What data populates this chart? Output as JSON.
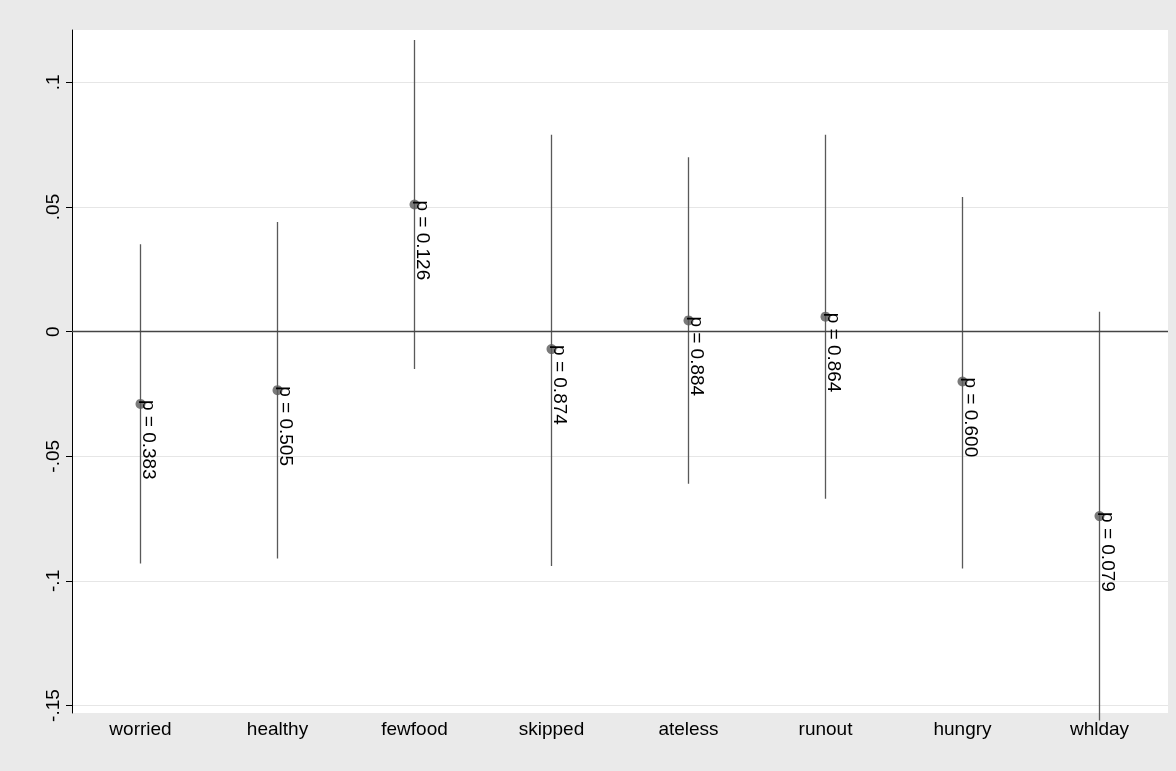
{
  "chart_data": {
    "type": "scatter",
    "categories": [
      "worried",
      "healthy",
      "fewfood",
      "skipped",
      "ateless",
      "runout",
      "hungry",
      "whlday"
    ],
    "values": [
      -0.029,
      -0.0235,
      0.051,
      -0.007,
      0.0045,
      0.006,
      -0.02,
      -0.074
    ],
    "errors": [
      [
        -0.093,
        0.035
      ],
      [
        -0.091,
        0.044
      ],
      [
        -0.015,
        0.117
      ],
      [
        -0.094,
        0.079
      ],
      [
        -0.061,
        0.07
      ],
      [
        -0.067,
        0.079
      ],
      [
        -0.095,
        0.054
      ],
      [
        -0.156,
        0.008
      ]
    ],
    "annotations": [
      {
        "text": "p = 0.383",
        "x": "worried",
        "y": -0.029
      },
      {
        "text": "p = 0.505",
        "x": "healthy",
        "y": -0.0235
      },
      {
        "text": "p = 0.126",
        "x": "fewfood",
        "y": 0.051
      },
      {
        "text": "p = 0.874",
        "x": "skipped",
        "y": -0.007
      },
      {
        "text": "p = 0.884",
        "x": "ateless",
        "y": 0.0045
      },
      {
        "text": "p = 0.864",
        "x": "runout",
        "y": 0.006
      },
      {
        "text": "p = 0.600",
        "x": "hungry",
        "y": -0.02
      },
      {
        "text": "p = 0.079",
        "x": "whlday",
        "y": -0.074
      }
    ],
    "color": "#595959",
    "marker": "circle",
    "ylim": [
      -0.153,
      0.121
    ],
    "yticks": [
      {
        "value": -0.15,
        "label": "-.15"
      },
      {
        "value": -0.1,
        "label": "-.1"
      },
      {
        "value": -0.05,
        "label": "-.05"
      },
      {
        "value": 0,
        "label": "0"
      },
      {
        "value": 0.05,
        "label": ".05"
      },
      {
        "value": 0.1,
        "label": ".1"
      }
    ],
    "ref_lines": [
      {
        "axis": "y",
        "value": 0,
        "color": "#444444"
      }
    ],
    "grid": "y"
  }
}
